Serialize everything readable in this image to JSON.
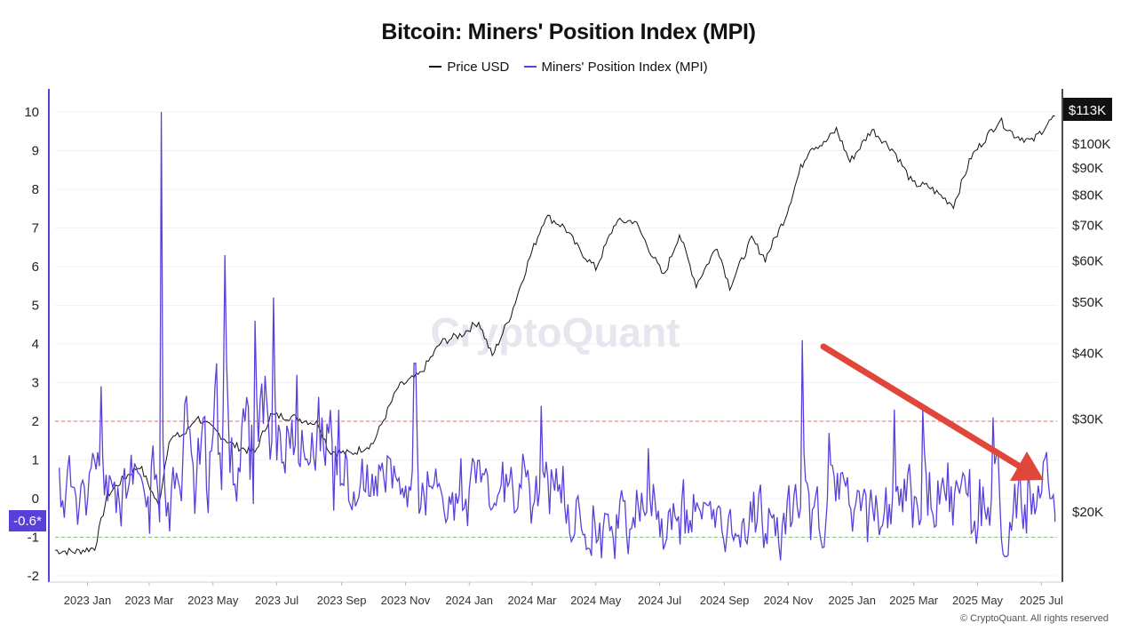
{
  "title": "Bitcoin: Miners' Position Index (MPI)",
  "legend": [
    {
      "label": "Price USD",
      "color": "#111111"
    },
    {
      "label": "Miners' Position Index (MPI)",
      "color": "#5b3fd9"
    }
  ],
  "watermark": "CryptoQuant",
  "copyright": "© CryptoQuant. All rights reserved",
  "current_mpi_label": "-0.6*",
  "current_price_label": "$113K",
  "reference_lines": [
    {
      "value": 2,
      "color": "#e07060",
      "style": "dashed",
      "axis": "mpi"
    },
    {
      "value": -1,
      "color": "#7cc27c",
      "style": "dashed",
      "axis": "mpi"
    }
  ],
  "annotation": {
    "type": "arrow",
    "color": "#e0463a",
    "description_direction": "downward trend"
  },
  "chart_data": {
    "type": "line",
    "title": "Bitcoin: Miners' Position Index (MPI)",
    "x_ticks": [
      "2023 Jan",
      "2023 Mar",
      "2023 May",
      "2023 Jul",
      "2023 Sep",
      "2023 Nov",
      "2024 Jan",
      "2024 Mar",
      "2024 May",
      "2024 Jul",
      "2024 Sep",
      "2024 Nov",
      "2025 Jan",
      "2025 Mar",
      "2025 May",
      "2025 Jul"
    ],
    "left_axis": {
      "ticks": [
        "10",
        "9",
        "8",
        "7",
        "6",
        "5",
        "4",
        "3",
        "2",
        "1",
        "0",
        "-1",
        "-2"
      ],
      "range": [
        -2.2,
        10.5
      ]
    },
    "right_axis": {
      "scale": "log",
      "ticks": [
        "$100K",
        "$90K",
        "$80K",
        "$70K",
        "$60K",
        "$50K",
        "$40K",
        "$30K",
        "$20K"
      ],
      "range": [
        15000,
        120000
      ]
    },
    "series": [
      {
        "name": "Price USD",
        "axis": "right",
        "color": "#111111",
        "points": [
          [
            "2022-12-01",
            16900
          ],
          [
            "2022-12-20",
            16800
          ],
          [
            "2023-01-08",
            17100
          ],
          [
            "2023-01-20",
            21500
          ],
          [
            "2023-02-05",
            23200
          ],
          [
            "2023-02-20",
            24500
          ],
          [
            "2023-03-10",
            20500
          ],
          [
            "2023-03-20",
            27500
          ],
          [
            "2023-04-05",
            28200
          ],
          [
            "2023-04-15",
            30300
          ],
          [
            "2023-05-01",
            28700
          ],
          [
            "2023-05-20",
            26800
          ],
          [
            "2023-06-10",
            25900
          ],
          [
            "2023-06-25",
            30500
          ],
          [
            "2023-07-15",
            30300
          ],
          [
            "2023-08-10",
            29400
          ],
          [
            "2023-08-20",
            26100
          ],
          [
            "2023-09-10",
            25800
          ],
          [
            "2023-10-01",
            27000
          ],
          [
            "2023-10-25",
            34500
          ],
          [
            "2023-11-15",
            36500
          ],
          [
            "2023-12-05",
            42000
          ],
          [
            "2023-12-25",
            43500
          ],
          [
            "2024-01-10",
            46000
          ],
          [
            "2024-01-23",
            39500
          ],
          [
            "2024-02-10",
            47500
          ],
          [
            "2024-02-28",
            61000
          ],
          [
            "2024-03-14",
            73000
          ],
          [
            "2024-04-01",
            69500
          ],
          [
            "2024-04-15",
            63000
          ],
          [
            "2024-05-01",
            58000
          ],
          [
            "2024-05-20",
            71000
          ],
          [
            "2024-06-07",
            71500
          ],
          [
            "2024-06-25",
            61000
          ],
          [
            "2024-07-05",
            56000
          ],
          [
            "2024-07-20",
            67500
          ],
          [
            "2024-08-05",
            54000
          ],
          [
            "2024-08-25",
            64000
          ],
          [
            "2024-09-06",
            53500
          ],
          [
            "2024-09-27",
            66000
          ],
          [
            "2024-10-10",
            60500
          ],
          [
            "2024-10-29",
            72500
          ],
          [
            "2024-11-13",
            90000
          ],
          [
            "2024-11-22",
            98500
          ],
          [
            "2024-12-05",
            100000
          ],
          [
            "2024-12-17",
            106500
          ],
          [
            "2024-12-30",
            92500
          ],
          [
            "2025-01-20",
            106500
          ],
          [
            "2025-02-10",
            97000
          ],
          [
            "2025-02-28",
            84000
          ],
          [
            "2025-03-15",
            83000
          ],
          [
            "2025-04-08",
            76500
          ],
          [
            "2025-04-25",
            94500
          ],
          [
            "2025-05-22",
            111000
          ],
          [
            "2025-06-05",
            104000
          ],
          [
            "2025-06-22",
            101000
          ],
          [
            "2025-07-05",
            108000
          ],
          [
            "2025-07-14",
            113000
          ]
        ]
      },
      {
        "name": "Miners' Position Index (MPI)",
        "axis": "left",
        "color": "#5b3fd9",
        "spikes": [
          [
            "2023-01-14",
            2.9
          ],
          [
            "2023-03-12",
            10.0
          ],
          [
            "2023-05-12",
            6.3
          ],
          [
            "2023-06-10",
            4.6
          ],
          [
            "2023-06-28",
            5.2
          ],
          [
            "2023-07-20",
            3.2
          ],
          [
            "2023-11-10",
            3.5
          ],
          [
            "2024-03-10",
            2.4
          ],
          [
            "2024-06-20",
            1.3
          ],
          [
            "2024-11-14",
            4.1
          ],
          [
            "2024-12-10",
            1.7
          ],
          [
            "2025-02-10",
            2.3
          ],
          [
            "2025-03-10",
            2.3
          ],
          [
            "2025-05-16",
            2.1
          ],
          [
            "2025-07-10",
            0.0
          ]
        ],
        "typical_range_by_period": [
          {
            "period": "2023 Jan-Mar",
            "min": -1.0,
            "max": 1.5
          },
          {
            "period": "2023 Apr-Aug",
            "min": -0.5,
            "max": 3.5
          },
          {
            "period": "2023 Sep-2024 Mar",
            "min": -1.0,
            "max": 1.3
          },
          {
            "period": "2024 Apr-Oct",
            "min": -1.6,
            "max": 0.5
          },
          {
            "period": "2024 Nov-2025 Jul",
            "min": -1.5,
            "max": 1.2
          }
        ],
        "latest_value": -0.6
      }
    ],
    "grid": true,
    "legend_position": "top-center"
  }
}
